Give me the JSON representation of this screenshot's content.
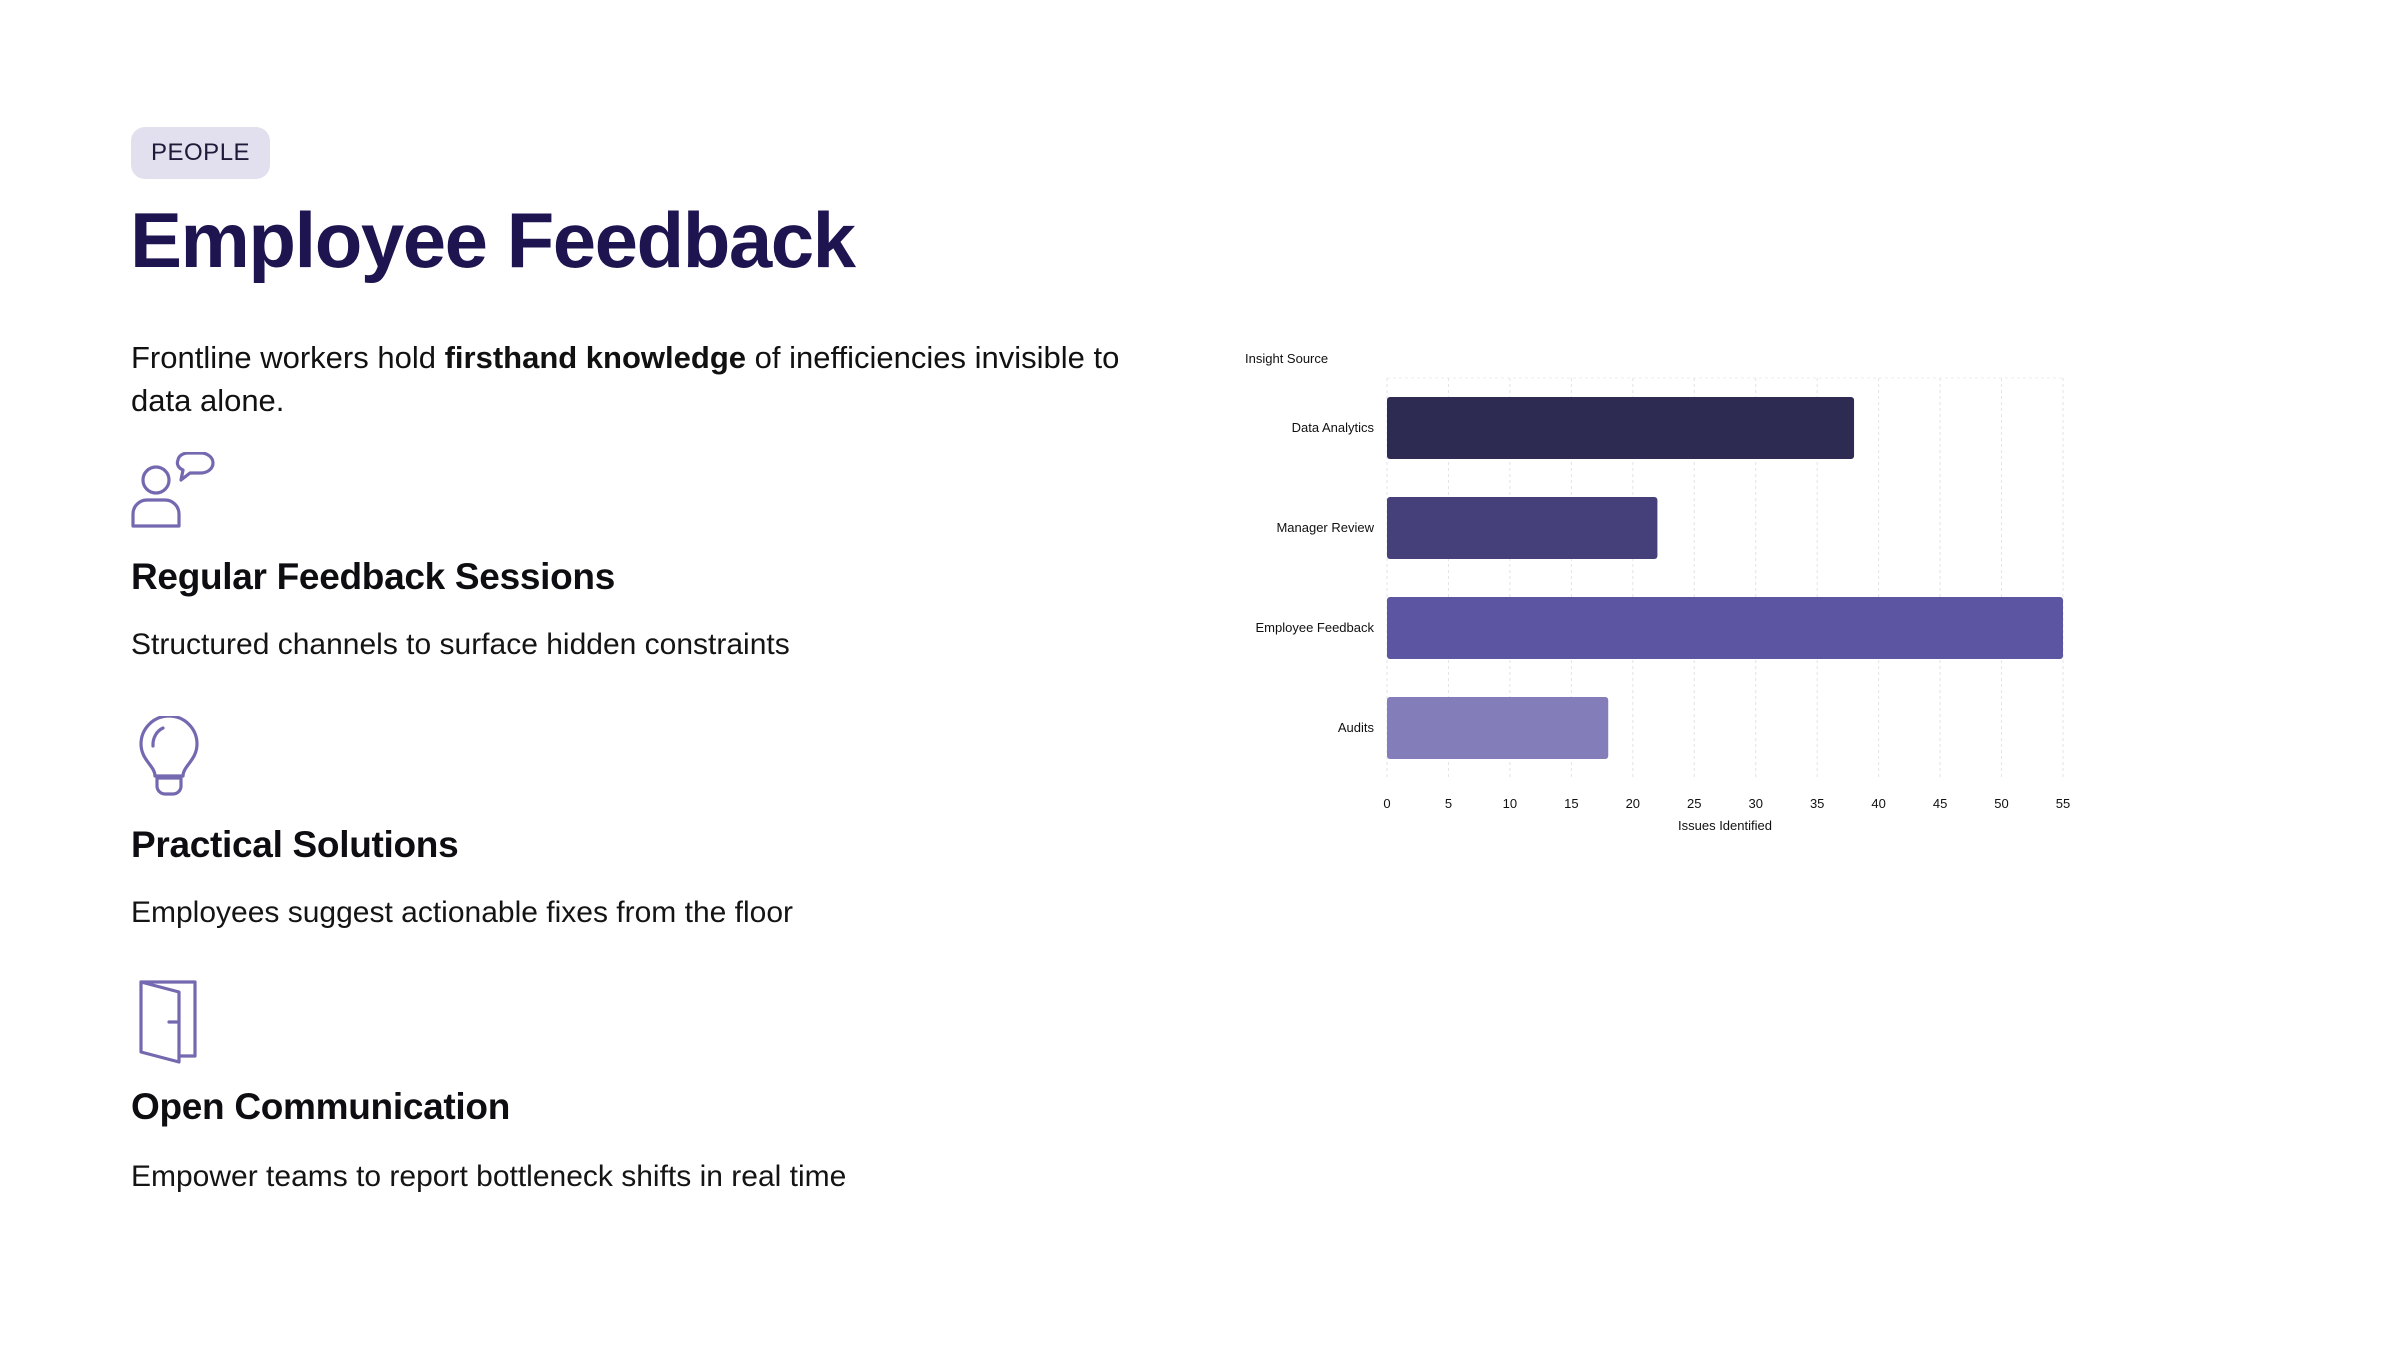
{
  "tag": "PEOPLE",
  "title": "Employee Feedback",
  "intro": {
    "before": "Frontline workers hold ",
    "bold": "firsthand knowledge",
    "after": " of inefficiencies invisible to data alone."
  },
  "features": [
    {
      "icon": "people-chat-icon",
      "title": "Regular Feedback Sessions",
      "text": "Structured channels to surface hidden constraints"
    },
    {
      "icon": "lightbulb-icon",
      "title": "Practical Solutions",
      "text": "Employees suggest actionable fixes from the floor"
    },
    {
      "icon": "door-icon",
      "title": "Open Communication",
      "text": "Empower teams to report bottleneck shifts in real time"
    }
  ],
  "colors": {
    "accent": "#1e1450",
    "icon": "#7469b0",
    "bars": [
      "#2e2b52",
      "#453f7a",
      "#5c55a1",
      "#837dba"
    ]
  },
  "chart_data": {
    "type": "bar",
    "orientation": "horizontal",
    "categories": [
      "Data Analytics",
      "Manager Review",
      "Employee Feedback",
      "Audits"
    ],
    "values": [
      38,
      22,
      55,
      18
    ],
    "title": "",
    "xlabel": "Issues Identified",
    "ylabel": "Insight Source",
    "xlim": [
      0,
      55
    ],
    "xticks": [
      0,
      5,
      10,
      15,
      20,
      25,
      30,
      35,
      40,
      45,
      50,
      55
    ],
    "grid": true,
    "legend": "none"
  }
}
